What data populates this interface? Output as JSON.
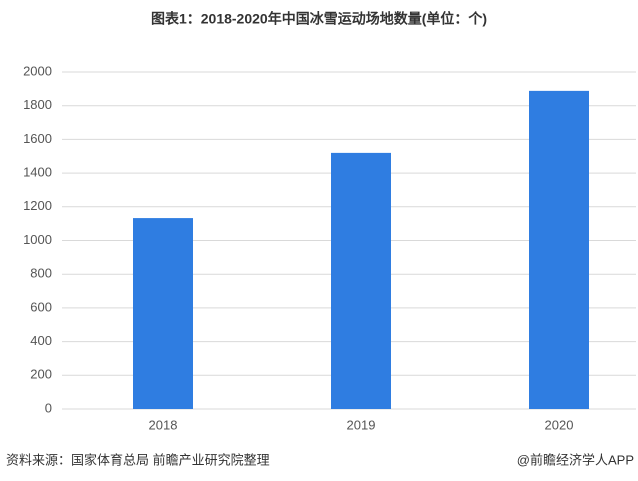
{
  "chart_data": {
    "type": "bar",
    "title": "图表1：2018-2020年中国冰雪运动场地数量(单位：个)",
    "categories": [
      "2018",
      "2019",
      "2020"
    ],
    "values": [
      1133,
      1520,
      1888
    ],
    "color": "#2f7de1",
    "ylim": [
      0,
      2000
    ],
    "yticks": [
      0,
      200,
      400,
      600,
      800,
      1000,
      1200,
      1400,
      1600,
      1800,
      2000
    ],
    "grid": true,
    "source": "资料来源：国家体育总局 前瞻产业研究院整理",
    "credit": "@前瞻经济学人APP"
  }
}
